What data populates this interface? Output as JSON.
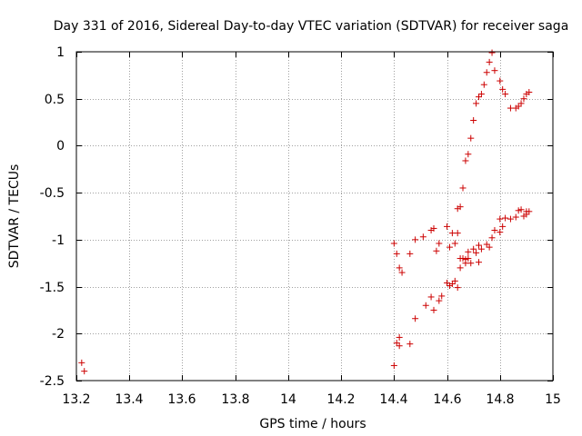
{
  "chart_data": {
    "type": "scatter",
    "title": "Day 331 of 2016, Sidereal Day-to-day VTEC variation (SDTVAR) for receiver saga",
    "xlabel": "GPS time / hours",
    "ylabel": "SDTVAR / TECUs",
    "xlim": [
      13.2,
      15.0
    ],
    "ylim": [
      -2.5,
      1.0
    ],
    "xticks": [
      13.2,
      13.4,
      13.6,
      13.8,
      14.0,
      14.2,
      14.4,
      14.6,
      14.8,
      15.0
    ],
    "xtick_labels": [
      "13.2",
      "13.4",
      "13.6",
      "13.8",
      "14",
      "14.2",
      "14.4",
      "14.6",
      "14.8",
      "15"
    ],
    "yticks": [
      -2.5,
      -2.0,
      -1.5,
      -1.0,
      -0.5,
      0.0,
      0.5,
      1.0
    ],
    "ytick_labels": [
      "-2.5",
      "-2",
      "-1.5",
      "-1",
      "-0.5",
      "0",
      "0.5",
      "1"
    ],
    "grid": true,
    "marker": "+",
    "color": "#cc0000",
    "series": [
      {
        "name": "SDTVAR",
        "points": [
          [
            13.22,
            -2.31
          ],
          [
            13.23,
            -2.4
          ],
          [
            14.4,
            -2.34
          ],
          [
            14.41,
            -2.1
          ],
          [
            14.42,
            -2.04
          ],
          [
            14.42,
            -2.13
          ],
          [
            14.46,
            -2.11
          ],
          [
            14.48,
            -1.84
          ],
          [
            14.52,
            -1.7
          ],
          [
            14.55,
            -1.75
          ],
          [
            14.54,
            -1.61
          ],
          [
            14.57,
            -1.65
          ],
          [
            14.58,
            -1.6
          ],
          [
            14.6,
            -1.46
          ],
          [
            14.61,
            -1.49
          ],
          [
            14.62,
            -1.47
          ],
          [
            14.63,
            -1.44
          ],
          [
            14.64,
            -1.51
          ],
          [
            14.65,
            -1.3
          ],
          [
            14.66,
            -1.2
          ],
          [
            14.67,
            -1.25
          ],
          [
            14.68,
            -1.2
          ],
          [
            14.69,
            -1.25
          ],
          [
            14.72,
            -1.24
          ],
          [
            14.65,
            -1.2
          ],
          [
            14.67,
            -1.21
          ],
          [
            14.68,
            -1.13
          ],
          [
            14.7,
            -1.1
          ],
          [
            14.71,
            -1.14
          ],
          [
            14.72,
            -1.06
          ],
          [
            14.73,
            -1.1
          ],
          [
            14.75,
            -1.05
          ],
          [
            14.76,
            -1.08
          ],
          [
            14.77,
            -0.98
          ],
          [
            14.78,
            -0.9
          ],
          [
            14.8,
            -0.92
          ],
          [
            14.81,
            -0.86
          ],
          [
            14.8,
            -0.78
          ],
          [
            14.82,
            -0.77
          ],
          [
            14.84,
            -0.78
          ],
          [
            14.86,
            -0.76
          ],
          [
            14.87,
            -0.69
          ],
          [
            14.88,
            -0.68
          ],
          [
            14.89,
            -0.75
          ],
          [
            14.9,
            -0.73
          ],
          [
            14.9,
            -0.7
          ],
          [
            14.91,
            -0.7
          ],
          [
            14.4,
            -1.04
          ],
          [
            14.41,
            -1.15
          ],
          [
            14.42,
            -1.3
          ],
          [
            14.43,
            -1.35
          ],
          [
            14.46,
            -1.15
          ],
          [
            14.48,
            -1.0
          ],
          [
            14.51,
            -0.97
          ],
          [
            14.54,
            -0.9
          ],
          [
            14.55,
            -0.88
          ],
          [
            14.56,
            -1.12
          ],
          [
            14.57,
            -1.04
          ],
          [
            14.6,
            -0.86
          ],
          [
            14.61,
            -1.08
          ],
          [
            14.62,
            -0.93
          ],
          [
            14.63,
            -1.04
          ],
          [
            14.64,
            -0.93
          ],
          [
            14.64,
            -0.67
          ],
          [
            14.65,
            -0.65
          ],
          [
            14.66,
            -0.45
          ],
          [
            14.67,
            -0.16
          ],
          [
            14.68,
            -0.09
          ],
          [
            14.69,
            0.08
          ],
          [
            14.7,
            0.27
          ],
          [
            14.71,
            0.45
          ],
          [
            14.72,
            0.52
          ],
          [
            14.73,
            0.55
          ],
          [
            14.74,
            0.65
          ],
          [
            14.75,
            0.78
          ],
          [
            14.76,
            0.89
          ],
          [
            14.77,
            0.99
          ],
          [
            14.78,
            0.8
          ],
          [
            14.8,
            0.69
          ],
          [
            14.81,
            0.6
          ],
          [
            14.82,
            0.55
          ],
          [
            14.84,
            0.4
          ],
          [
            14.86,
            0.4
          ],
          [
            14.87,
            0.42
          ],
          [
            14.88,
            0.45
          ],
          [
            14.89,
            0.5
          ],
          [
            14.9,
            0.55
          ],
          [
            14.91,
            0.57
          ]
        ]
      }
    ]
  }
}
